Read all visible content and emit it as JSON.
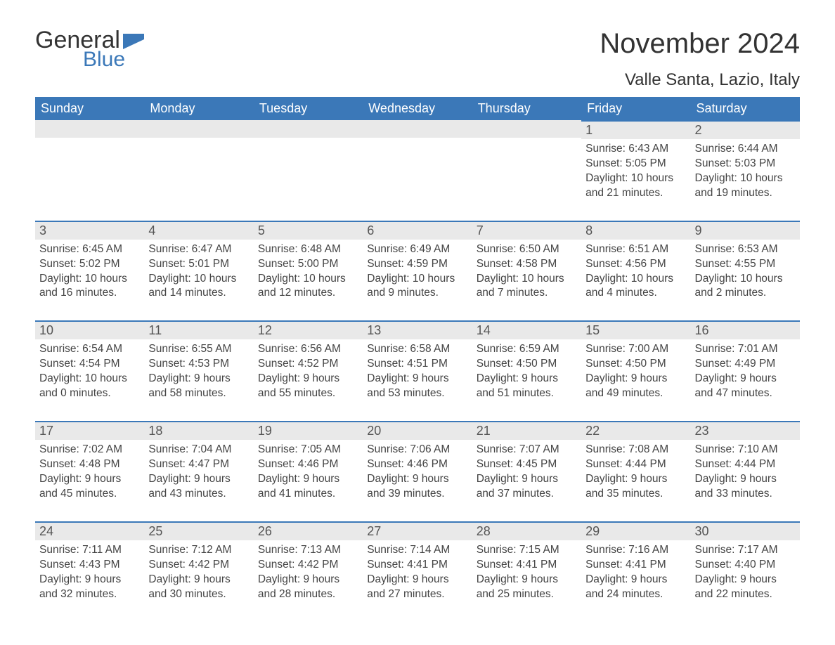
{
  "logo": {
    "word1": "General",
    "word2": "Blue",
    "flag_color": "#3b78b8",
    "text_color": "#333333"
  },
  "title": "November 2024",
  "location": "Valle Santa, Lazio, Italy",
  "colors": {
    "header_bg": "#3b78b8",
    "header_text": "#ffffff",
    "daynum_bg": "#e9e9e9",
    "daynum_border": "#3b78b8",
    "body_text": "#444444",
    "page_bg": "#ffffff"
  },
  "weekdays": [
    "Sunday",
    "Monday",
    "Tuesday",
    "Wednesday",
    "Thursday",
    "Friday",
    "Saturday"
  ],
  "weeks": [
    [
      {
        "empty": true
      },
      {
        "empty": true
      },
      {
        "empty": true
      },
      {
        "empty": true
      },
      {
        "empty": true
      },
      {
        "day": "1",
        "sunrise": "Sunrise: 6:43 AM",
        "sunset": "Sunset: 5:05 PM",
        "daylight1": "Daylight: 10 hours",
        "daylight2": "and 21 minutes."
      },
      {
        "day": "2",
        "sunrise": "Sunrise: 6:44 AM",
        "sunset": "Sunset: 5:03 PM",
        "daylight1": "Daylight: 10 hours",
        "daylight2": "and 19 minutes."
      }
    ],
    [
      {
        "day": "3",
        "sunrise": "Sunrise: 6:45 AM",
        "sunset": "Sunset: 5:02 PM",
        "daylight1": "Daylight: 10 hours",
        "daylight2": "and 16 minutes."
      },
      {
        "day": "4",
        "sunrise": "Sunrise: 6:47 AM",
        "sunset": "Sunset: 5:01 PM",
        "daylight1": "Daylight: 10 hours",
        "daylight2": "and 14 minutes."
      },
      {
        "day": "5",
        "sunrise": "Sunrise: 6:48 AM",
        "sunset": "Sunset: 5:00 PM",
        "daylight1": "Daylight: 10 hours",
        "daylight2": "and 12 minutes."
      },
      {
        "day": "6",
        "sunrise": "Sunrise: 6:49 AM",
        "sunset": "Sunset: 4:59 PM",
        "daylight1": "Daylight: 10 hours",
        "daylight2": "and 9 minutes."
      },
      {
        "day": "7",
        "sunrise": "Sunrise: 6:50 AM",
        "sunset": "Sunset: 4:58 PM",
        "daylight1": "Daylight: 10 hours",
        "daylight2": "and 7 minutes."
      },
      {
        "day": "8",
        "sunrise": "Sunrise: 6:51 AM",
        "sunset": "Sunset: 4:56 PM",
        "daylight1": "Daylight: 10 hours",
        "daylight2": "and 4 minutes."
      },
      {
        "day": "9",
        "sunrise": "Sunrise: 6:53 AM",
        "sunset": "Sunset: 4:55 PM",
        "daylight1": "Daylight: 10 hours",
        "daylight2": "and 2 minutes."
      }
    ],
    [
      {
        "day": "10",
        "sunrise": "Sunrise: 6:54 AM",
        "sunset": "Sunset: 4:54 PM",
        "daylight1": "Daylight: 10 hours",
        "daylight2": "and 0 minutes."
      },
      {
        "day": "11",
        "sunrise": "Sunrise: 6:55 AM",
        "sunset": "Sunset: 4:53 PM",
        "daylight1": "Daylight: 9 hours",
        "daylight2": "and 58 minutes."
      },
      {
        "day": "12",
        "sunrise": "Sunrise: 6:56 AM",
        "sunset": "Sunset: 4:52 PM",
        "daylight1": "Daylight: 9 hours",
        "daylight2": "and 55 minutes."
      },
      {
        "day": "13",
        "sunrise": "Sunrise: 6:58 AM",
        "sunset": "Sunset: 4:51 PM",
        "daylight1": "Daylight: 9 hours",
        "daylight2": "and 53 minutes."
      },
      {
        "day": "14",
        "sunrise": "Sunrise: 6:59 AM",
        "sunset": "Sunset: 4:50 PM",
        "daylight1": "Daylight: 9 hours",
        "daylight2": "and 51 minutes."
      },
      {
        "day": "15",
        "sunrise": "Sunrise: 7:00 AM",
        "sunset": "Sunset: 4:50 PM",
        "daylight1": "Daylight: 9 hours",
        "daylight2": "and 49 minutes."
      },
      {
        "day": "16",
        "sunrise": "Sunrise: 7:01 AM",
        "sunset": "Sunset: 4:49 PM",
        "daylight1": "Daylight: 9 hours",
        "daylight2": "and 47 minutes."
      }
    ],
    [
      {
        "day": "17",
        "sunrise": "Sunrise: 7:02 AM",
        "sunset": "Sunset: 4:48 PM",
        "daylight1": "Daylight: 9 hours",
        "daylight2": "and 45 minutes."
      },
      {
        "day": "18",
        "sunrise": "Sunrise: 7:04 AM",
        "sunset": "Sunset: 4:47 PM",
        "daylight1": "Daylight: 9 hours",
        "daylight2": "and 43 minutes."
      },
      {
        "day": "19",
        "sunrise": "Sunrise: 7:05 AM",
        "sunset": "Sunset: 4:46 PM",
        "daylight1": "Daylight: 9 hours",
        "daylight2": "and 41 minutes."
      },
      {
        "day": "20",
        "sunrise": "Sunrise: 7:06 AM",
        "sunset": "Sunset: 4:46 PM",
        "daylight1": "Daylight: 9 hours",
        "daylight2": "and 39 minutes."
      },
      {
        "day": "21",
        "sunrise": "Sunrise: 7:07 AM",
        "sunset": "Sunset: 4:45 PM",
        "daylight1": "Daylight: 9 hours",
        "daylight2": "and 37 minutes."
      },
      {
        "day": "22",
        "sunrise": "Sunrise: 7:08 AM",
        "sunset": "Sunset: 4:44 PM",
        "daylight1": "Daylight: 9 hours",
        "daylight2": "and 35 minutes."
      },
      {
        "day": "23",
        "sunrise": "Sunrise: 7:10 AM",
        "sunset": "Sunset: 4:44 PM",
        "daylight1": "Daylight: 9 hours",
        "daylight2": "and 33 minutes."
      }
    ],
    [
      {
        "day": "24",
        "sunrise": "Sunrise: 7:11 AM",
        "sunset": "Sunset: 4:43 PM",
        "daylight1": "Daylight: 9 hours",
        "daylight2": "and 32 minutes."
      },
      {
        "day": "25",
        "sunrise": "Sunrise: 7:12 AM",
        "sunset": "Sunset: 4:42 PM",
        "daylight1": "Daylight: 9 hours",
        "daylight2": "and 30 minutes."
      },
      {
        "day": "26",
        "sunrise": "Sunrise: 7:13 AM",
        "sunset": "Sunset: 4:42 PM",
        "daylight1": "Daylight: 9 hours",
        "daylight2": "and 28 minutes."
      },
      {
        "day": "27",
        "sunrise": "Sunrise: 7:14 AM",
        "sunset": "Sunset: 4:41 PM",
        "daylight1": "Daylight: 9 hours",
        "daylight2": "and 27 minutes."
      },
      {
        "day": "28",
        "sunrise": "Sunrise: 7:15 AM",
        "sunset": "Sunset: 4:41 PM",
        "daylight1": "Daylight: 9 hours",
        "daylight2": "and 25 minutes."
      },
      {
        "day": "29",
        "sunrise": "Sunrise: 7:16 AM",
        "sunset": "Sunset: 4:41 PM",
        "daylight1": "Daylight: 9 hours",
        "daylight2": "and 24 minutes."
      },
      {
        "day": "30",
        "sunrise": "Sunrise: 7:17 AM",
        "sunset": "Sunset: 4:40 PM",
        "daylight1": "Daylight: 9 hours",
        "daylight2": "and 22 minutes."
      }
    ]
  ]
}
